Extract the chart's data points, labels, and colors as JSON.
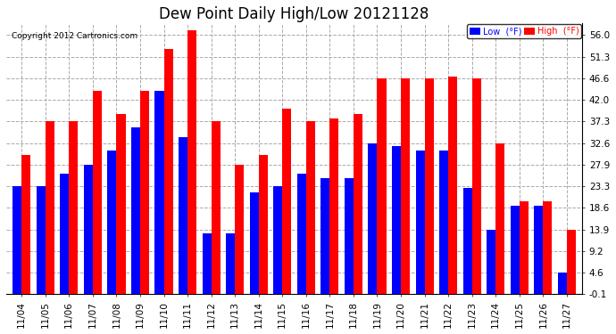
{
  "title": "Dew Point Daily High/Low 20121128",
  "copyright": "Copyright 2012 Cartronics.com",
  "dates": [
    "11/04",
    "11/05",
    "11/06",
    "11/07",
    "11/08",
    "11/09",
    "11/10",
    "11/11",
    "11/12",
    "11/13",
    "11/14",
    "11/15",
    "11/16",
    "11/17",
    "11/18",
    "11/19",
    "11/20",
    "11/21",
    "11/22",
    "11/23",
    "11/24",
    "11/25",
    "11/26",
    "11/27"
  ],
  "low_values": [
    23.3,
    23.3,
    26,
    27.9,
    31,
    36,
    44,
    34,
    13,
    13,
    22,
    23.3,
    26,
    25,
    25,
    32.6,
    32,
    31,
    31,
    23,
    13.9,
    19,
    19,
    4.6
  ],
  "high_values": [
    30,
    37.3,
    37.3,
    44,
    39,
    44,
    53,
    57,
    37.3,
    28,
    30,
    40,
    37.3,
    38,
    39,
    46.6,
    46.6,
    46.6,
    47,
    46.6,
    32.6,
    20,
    20,
    13.9
  ],
  "ylim": [
    -0.1,
    58.5
  ],
  "yticks": [
    -0.1,
    4.6,
    9.2,
    13.9,
    18.6,
    23.3,
    27.9,
    32.6,
    37.3,
    42.0,
    46.6,
    51.3,
    56.0
  ],
  "bar_width": 0.38,
  "low_color": "#0000ff",
  "high_color": "#ff0000",
  "bg_color": "#ffffff",
  "grid_color": "#aaaaaa",
  "title_fontsize": 12,
  "tick_fontsize": 7.5,
  "legend_low_label": "Low  (°F)",
  "legend_high_label": "High  (°F)"
}
